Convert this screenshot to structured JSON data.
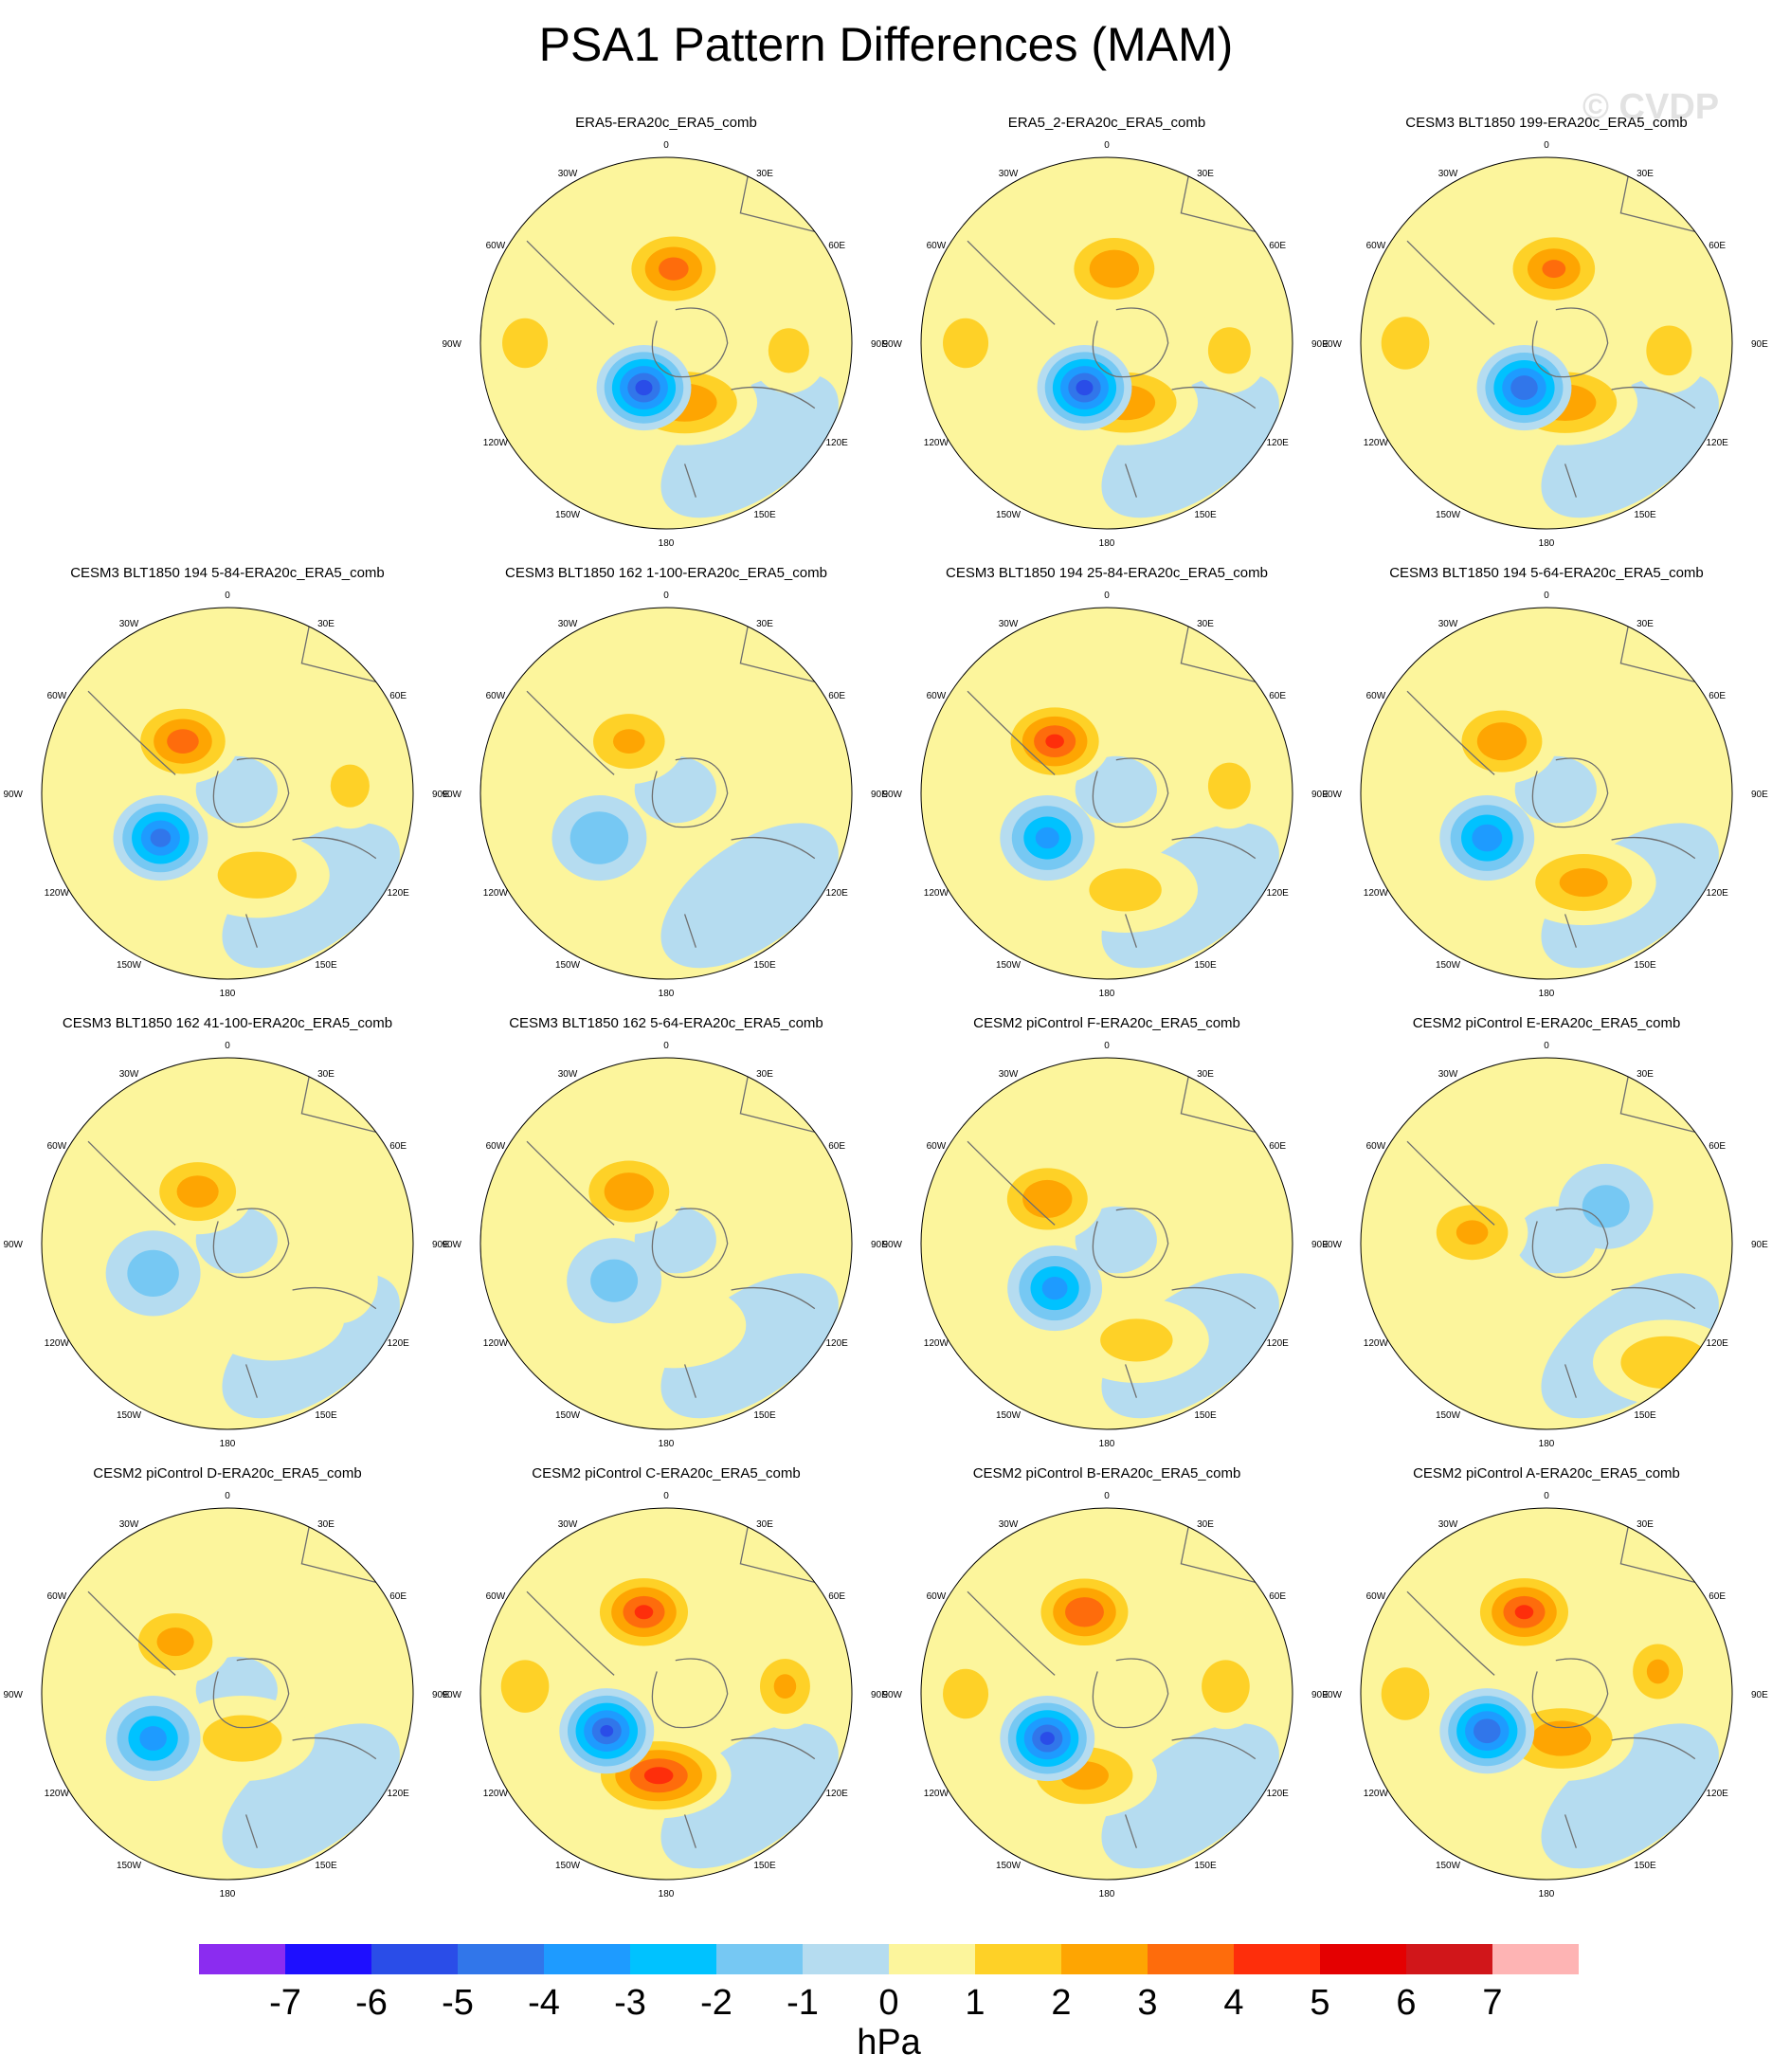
{
  "title": "PSA1 Pattern Differences (MAM)",
  "watermark": "© CVDP",
  "longitude_labels": [
    "0",
    "30E",
    "60E",
    "90E",
    "120E",
    "150E",
    "180",
    "150W",
    "120W",
    "90W",
    "60W",
    "30W"
  ],
  "panels": [
    {
      "title": "ERA5-ERA20c_ERA5_comb",
      "low": [
        -5.5,
        0.44,
        0.62
      ],
      "high1": [
        3.5,
        0.52,
        0.3
      ],
      "high2": [
        3.0,
        0.55,
        0.66
      ],
      "high3": [
        1.8,
        0.12,
        0.5
      ],
      "high4": [
        1.5,
        0.83,
        0.52
      ]
    },
    {
      "title": "ERA5_2-ERA20c_ERA5_comb",
      "low": [
        -5.5,
        0.44,
        0.62
      ],
      "high1": [
        3.0,
        0.52,
        0.3
      ],
      "high2": [
        2.8,
        0.55,
        0.66
      ],
      "high3": [
        1.8,
        0.12,
        0.5
      ],
      "high4": [
        1.6,
        0.83,
        0.52
      ]
    },
    {
      "title": "CESM3 BLT1850 199-ERA20c_ERA5_comb",
      "low": [
        -5.0,
        0.44,
        0.62
      ],
      "high1": [
        3.2,
        0.52,
        0.3
      ],
      "high2": [
        2.9,
        0.55,
        0.66
      ],
      "high3": [
        2.0,
        0.12,
        0.5
      ],
      "high4": [
        1.8,
        0.83,
        0.52
      ]
    },
    {
      "title": "CESM3 BLT1850 194 5-84-ERA20c_ERA5_comb",
      "low": [
        -4.5,
        0.32,
        0.62
      ],
      "high1": [
        3.6,
        0.38,
        0.36
      ],
      "high2": [
        1.6,
        0.58,
        0.72
      ],
      "high3": [
        0.0,
        0.12,
        0.5
      ],
      "high4": [
        1.4,
        0.83,
        0.48
      ]
    },
    {
      "title": "CESM3 BLT1850 162 1-100-ERA20c_ERA5_comb",
      "low": [
        -2.0,
        0.32,
        0.62
      ],
      "high1": [
        2.2,
        0.4,
        0.36
      ],
      "high2": [
        0.0,
        0.58,
        0.72
      ],
      "high3": [
        0.0,
        0.12,
        0.5
      ],
      "high4": [
        0.0,
        0.83,
        0.48
      ]
    },
    {
      "title": "CESM3 BLT1850 194 25-84-ERA20c_ERA5_comb",
      "low": [
        -3.4,
        0.34,
        0.62
      ],
      "high1": [
        4.2,
        0.36,
        0.36
      ],
      "high2": [
        1.4,
        0.55,
        0.76
      ],
      "high3": [
        0.0,
        0.12,
        0.5
      ],
      "high4": [
        1.6,
        0.83,
        0.48
      ]
    },
    {
      "title": "CESM3 BLT1850 194 5-64-ERA20c_ERA5_comb",
      "low": [
        -3.8,
        0.34,
        0.62
      ],
      "high1": [
        3.0,
        0.38,
        0.36
      ],
      "high2": [
        2.4,
        0.6,
        0.74
      ],
      "high3": [
        0.0,
        0.12,
        0.5
      ],
      "high4": [
        0.8,
        0.78,
        0.4
      ]
    },
    {
      "title": "CESM3 BLT1850 162 41-100-ERA20c_ERA5_comb",
      "low": [
        -1.6,
        0.3,
        0.58
      ],
      "high1": [
        2.6,
        0.42,
        0.36
      ],
      "high2": [
        0.8,
        0.62,
        0.7
      ],
      "high3": [
        0.0,
        0.12,
        0.5
      ],
      "high4": [
        0.6,
        0.8,
        0.6
      ]
    },
    {
      "title": "CESM3 BLT1850 162 5-64-ERA20c_ERA5_comb",
      "low": [
        -1.4,
        0.36,
        0.6
      ],
      "high1": [
        3.0,
        0.4,
        0.36
      ],
      "high2": [
        1.0,
        0.52,
        0.72
      ],
      "high3": [
        0.0,
        0.12,
        0.5
      ],
      "high4": [
        0.0,
        0.83,
        0.48
      ]
    },
    {
      "title": "CESM2 piControl F-ERA20c_ERA5_comb",
      "low": [
        -3.5,
        0.36,
        0.62
      ],
      "high1": [
        3.0,
        0.34,
        0.38
      ],
      "high2": [
        1.4,
        0.58,
        0.76
      ],
      "high3": [
        0.0,
        0.12,
        0.5
      ],
      "high4": [
        1.0,
        0.82,
        0.34
      ]
    },
    {
      "title": "CESM2 piControl E-ERA20c_ERA5_comb",
      "low": [
        -1.4,
        0.66,
        0.4
      ],
      "high1": [
        2.2,
        0.3,
        0.47
      ],
      "high2": [
        2.0,
        0.82,
        0.82
      ],
      "high3": [
        0.0,
        0.12,
        0.5
      ],
      "high4": [
        0.0,
        0.83,
        0.48
      ]
    },
    {
      "title": "CESM2 piControl D-ERA20c_ERA5_comb",
      "low": [
        -3.6,
        0.3,
        0.62
      ],
      "high1": [
        2.4,
        0.36,
        0.36
      ],
      "high2": [
        1.6,
        0.54,
        0.62
      ],
      "high3": [
        0.0,
        0.12,
        0.5
      ],
      "high4": [
        0.0,
        0.83,
        0.48
      ]
    },
    {
      "title": "CESM2 piControl C-ERA20c_ERA5_comb",
      "low": [
        -5.2,
        0.34,
        0.6
      ],
      "high1": [
        4.2,
        0.44,
        0.28
      ],
      "high2": [
        4.4,
        0.48,
        0.72
      ],
      "high3": [
        2.0,
        0.12,
        0.48
      ],
      "high4": [
        2.2,
        0.82,
        0.48
      ]
    },
    {
      "title": "CESM2 piControl B-ERA20c_ERA5_comb",
      "low": [
        -5.3,
        0.34,
        0.62
      ],
      "high1": [
        4.0,
        0.44,
        0.28
      ],
      "high2": [
        2.4,
        0.44,
        0.72
      ],
      "high3": [
        1.8,
        0.12,
        0.5
      ],
      "high4": [
        2.0,
        0.82,
        0.48
      ]
    },
    {
      "title": "CESM2 piControl A-ERA20c_ERA5_comb",
      "low": [
        -5.0,
        0.34,
        0.6
      ],
      "high1": [
        4.2,
        0.44,
        0.28
      ],
      "high2": [
        2.8,
        0.54,
        0.62
      ],
      "high3": [
        2.0,
        0.12,
        0.5
      ],
      "high4": [
        2.2,
        0.8,
        0.44
      ]
    }
  ],
  "colorbar": {
    "colors": [
      "#8b2cf0",
      "#1e0fff",
      "#2a4de8",
      "#3176ea",
      "#1e9bff",
      "#00c2ff",
      "#76c8f3",
      "#b5dcf0",
      "#fcf59c",
      "#fed127",
      "#fea502",
      "#fe6c0c",
      "#fe2e0b",
      "#e40001",
      "#d1161a",
      "#feb4b4"
    ],
    "tick_labels": [
      "-7",
      "-6",
      "-5",
      "-4",
      "-3",
      "-2",
      "-1",
      "0",
      "1",
      "2",
      "3",
      "4",
      "5",
      "6",
      "7"
    ],
    "units": "hPa"
  }
}
